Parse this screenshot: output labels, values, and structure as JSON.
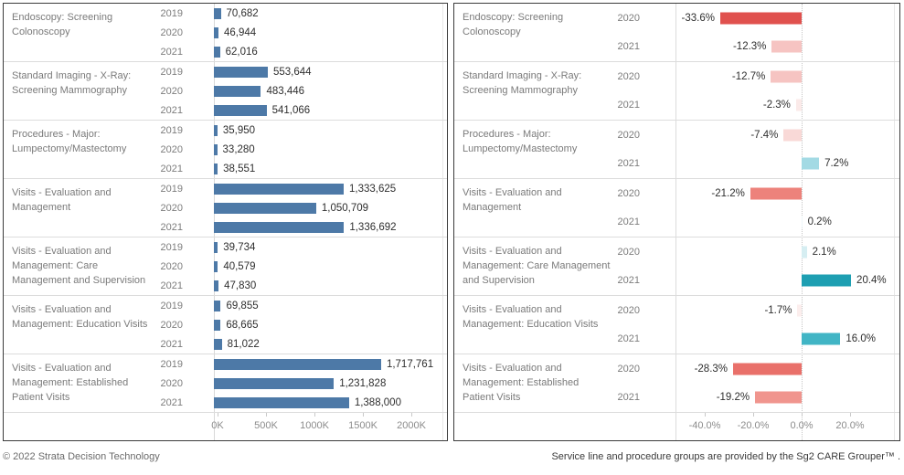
{
  "chart_data": [
    {
      "name": "volume-by-year",
      "type": "bar",
      "orientation": "horizontal",
      "bar_color": "#4d79a7",
      "value_axis": {
        "ticks": [
          {
            "label": "0K",
            "value": 0
          },
          {
            "label": "500K",
            "value": 500000
          },
          {
            "label": "1000K",
            "value": 1000000
          },
          {
            "label": "1500K",
            "value": 1500000
          },
          {
            "label": "2000K",
            "value": 2000000
          }
        ],
        "range": [
          0,
          2300000
        ],
        "grid": false
      },
      "groups": [
        {
          "category": "Endoscopy: Screening\nColonoscopy",
          "bars": [
            {
              "year": "2019",
              "value": 70682,
              "label": "70,682"
            },
            {
              "year": "2020",
              "value": 46944,
              "label": "46,944"
            },
            {
              "year": "2021",
              "value": 62016,
              "label": "62,016"
            }
          ]
        },
        {
          "category": "Standard Imaging - X-Ray:\nScreening Mammography",
          "bars": [
            {
              "year": "2019",
              "value": 553644,
              "label": "553,644"
            },
            {
              "year": "2020",
              "value": 483446,
              "label": "483,446"
            },
            {
              "year": "2021",
              "value": 541066,
              "label": "541,066"
            }
          ]
        },
        {
          "category": "Procedures - Major:\nLumpectomy/Mastectomy",
          "bars": [
            {
              "year": "2019",
              "value": 35950,
              "label": "35,950"
            },
            {
              "year": "2020",
              "value": 33280,
              "label": "33,280"
            },
            {
              "year": "2021",
              "value": 38551,
              "label": "38,551"
            }
          ]
        },
        {
          "category": "Visits - Evaluation and\nManagement",
          "bars": [
            {
              "year": "2019",
              "value": 1333625,
              "label": "1,333,625"
            },
            {
              "year": "2020",
              "value": 1050709,
              "label": "1,050,709"
            },
            {
              "year": "2021",
              "value": 1336692,
              "label": "1,336,692"
            }
          ]
        },
        {
          "category": "Visits - Evaluation and\nManagement: Care\nManagement and Supervision",
          "bars": [
            {
              "year": "2019",
              "value": 39734,
              "label": "39,734"
            },
            {
              "year": "2020",
              "value": 40579,
              "label": "40,579"
            },
            {
              "year": "2021",
              "value": 47830,
              "label": "47,830"
            }
          ]
        },
        {
          "category": "Visits - Evaluation and\nManagement: Education Visits",
          "bars": [
            {
              "year": "2019",
              "value": 69855,
              "label": "69,855"
            },
            {
              "year": "2020",
              "value": 68665,
              "label": "68,665"
            },
            {
              "year": "2021",
              "value": 81022,
              "label": "81,022"
            }
          ]
        },
        {
          "category": "Visits - Evaluation and\nManagement: Established\nPatient Visits",
          "bars": [
            {
              "year": "2019",
              "value": 1717761,
              "label": "1,717,761"
            },
            {
              "year": "2020",
              "value": 1231828,
              "label": "1,231,828"
            },
            {
              "year": "2021",
              "value": 1388000,
              "label": "1,388,000"
            }
          ]
        }
      ]
    },
    {
      "name": "percent-change-vs-prior",
      "type": "bar",
      "orientation": "horizontal",
      "palette": {
        "negative_strong": "#e0514e",
        "negative_light": "#f6c4c2",
        "positive_strong": "#1e9fb2",
        "positive_light": "#d6eef2"
      },
      "value_axis": {
        "ticks": [
          {
            "label": "-40.0%",
            "value": -40
          },
          {
            "label": "-20.0%",
            "value": -20
          },
          {
            "label": "0.0%",
            "value": 0
          },
          {
            "label": "20.0%",
            "value": 20
          }
        ],
        "range": [
          -52,
          40
        ],
        "zero_line": "dotted",
        "grid": false
      },
      "groups": [
        {
          "category": "Endoscopy: Screening\nColonoscopy",
          "bars": [
            {
              "year": "2020",
              "value": -33.6,
              "label": "-33.6%",
              "color": "#e0514e"
            },
            {
              "year": "2021",
              "value": -12.3,
              "label": "-12.3%",
              "color": "#f6c4c2"
            }
          ]
        },
        {
          "category": "Standard Imaging - X-Ray:\nScreening Mammography",
          "bars": [
            {
              "year": "2020",
              "value": -12.7,
              "label": "-12.7%",
              "color": "#f6c4c2"
            },
            {
              "year": "2021",
              "value": -2.3,
              "label": "-2.3%",
              "color": "#fbeae9"
            }
          ]
        },
        {
          "category": "Procedures - Major:\nLumpectomy/Mastectomy",
          "bars": [
            {
              "year": "2020",
              "value": -7.4,
              "label": "-7.4%",
              "color": "#f9d9d7"
            },
            {
              "year": "2021",
              "value": 7.2,
              "label": "7.2%",
              "color": "#a3dae4"
            }
          ]
        },
        {
          "category": "Visits - Evaluation and\nManagement",
          "bars": [
            {
              "year": "2020",
              "value": -21.2,
              "label": "-21.2%",
              "color": "#ed827b"
            },
            {
              "year": "2021",
              "value": 0.2,
              "label": "0.2%",
              "color": "#eef7f9"
            }
          ]
        },
        {
          "category": "Visits - Evaluation and\nManagement: Care Management\nand Supervision",
          "bars": [
            {
              "year": "2020",
              "value": 2.1,
              "label": "2.1%",
              "color": "#d6eef2"
            },
            {
              "year": "2021",
              "value": 20.4,
              "label": "20.4%",
              "color": "#1e9fb2"
            }
          ]
        },
        {
          "category": "Visits - Evaluation and\nManagement: Education Visits",
          "bars": [
            {
              "year": "2020",
              "value": -1.7,
              "label": "-1.7%",
              "color": "#fceeed"
            },
            {
              "year": "2021",
              "value": 16.0,
              "label": "16.0%",
              "color": "#41b5c5"
            }
          ]
        },
        {
          "category": "Visits - Evaluation and\nManagement: Established\nPatient Visits",
          "bars": [
            {
              "year": "2020",
              "value": -28.3,
              "label": "-28.3%",
              "color": "#e9706a"
            },
            {
              "year": "2021",
              "value": -19.2,
              "label": "-19.2%",
              "color": "#f0958e"
            }
          ]
        }
      ]
    }
  ],
  "footer": {
    "copyright": "© 2022 Strata Decision Technology",
    "attribution": "Service line and procedure groups are provided by the Sg2 CARE Grouper™ ."
  }
}
